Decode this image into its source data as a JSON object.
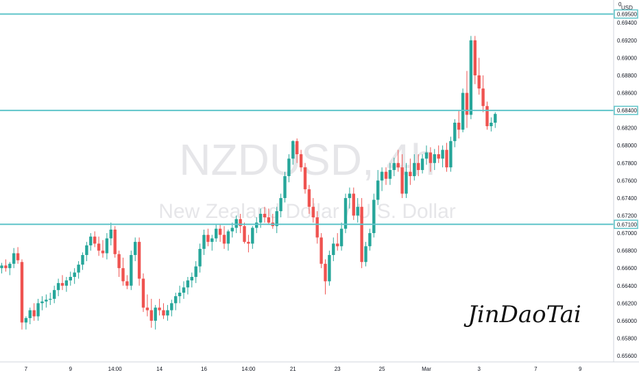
{
  "watermark": {
    "symbol": "NZDUSD, 4h",
    "name": "New Zealand Dollar / U.S. Dollar"
  },
  "axis": {
    "currency": "USD",
    "top_tick": "0"
  },
  "signature": "JinDaoTai",
  "colors": {
    "up": "#26a69a",
    "down": "#ef5350",
    "level": "#5ec4c9",
    "axis": "#131722"
  },
  "chart_data": {
    "type": "candlestick",
    "title": "",
    "ylim": [
      0.6553,
      0.6966
    ],
    "yticks": [
      "0.69500",
      "0.69400",
      "0.69200",
      "0.69000",
      "0.68800",
      "0.68600",
      "0.68400",
      "0.68200",
      "0.68000",
      "0.67800",
      "0.67600",
      "0.67400",
      "0.67200",
      "0.67100",
      "0.67000",
      "0.66800",
      "0.66600",
      "0.66400",
      "0.66200",
      "0.66000",
      "0.65800",
      "0.65600"
    ],
    "xticks": [
      {
        "label": "7",
        "index": 6
      },
      {
        "label": "9",
        "index": 17
      },
      {
        "label": "14:00",
        "index": 28
      },
      {
        "label": "14",
        "index": 39
      },
      {
        "label": "16",
        "index": 50
      },
      {
        "label": "14:00",
        "index": 61
      },
      {
        "label": "21",
        "index": 72
      },
      {
        "label": "23",
        "index": 83
      },
      {
        "label": "25",
        "index": 94
      },
      {
        "label": "Mar",
        "index": 105
      },
      {
        "label": "3",
        "index": 118
      },
      {
        "label": "7",
        "index": 132
      },
      {
        "label": "9",
        "index": 143
      }
    ],
    "levels": [
      {
        "value": 0.695,
        "label": "0.69500"
      },
      {
        "value": 0.684,
        "label": "0.68400"
      },
      {
        "value": 0.671,
        "label": "0.67100"
      }
    ],
    "candles": [
      [
        0.666,
        0.6666,
        0.6654,
        0.6663
      ],
      [
        0.6663,
        0.667,
        0.6656,
        0.666
      ],
      [
        0.666,
        0.6667,
        0.6652,
        0.6665
      ],
      [
        0.6665,
        0.6683,
        0.666,
        0.6677
      ],
      [
        0.6677,
        0.6684,
        0.6665,
        0.6669
      ],
      [
        0.6667,
        0.667,
        0.659,
        0.6598
      ],
      [
        0.6598,
        0.6605,
        0.659,
        0.6603
      ],
      [
        0.6603,
        0.6615,
        0.6596,
        0.6612
      ],
      [
        0.6612,
        0.662,
        0.66,
        0.6605
      ],
      [
        0.6605,
        0.6625,
        0.66,
        0.662
      ],
      [
        0.662,
        0.6628,
        0.6612,
        0.6622
      ],
      [
        0.6622,
        0.663,
        0.6615,
        0.6624
      ],
      [
        0.6624,
        0.6632,
        0.6618,
        0.6625
      ],
      [
        0.6625,
        0.664,
        0.662,
        0.6635
      ],
      [
        0.6635,
        0.6648,
        0.6628,
        0.6643
      ],
      [
        0.6643,
        0.6652,
        0.6635,
        0.664
      ],
      [
        0.664,
        0.665,
        0.6633,
        0.6646
      ],
      [
        0.6646,
        0.6656,
        0.664,
        0.665
      ],
      [
        0.665,
        0.666,
        0.6642,
        0.6655
      ],
      [
        0.6655,
        0.6668,
        0.6648,
        0.6664
      ],
      [
        0.6664,
        0.6678,
        0.6658,
        0.6675
      ],
      [
        0.6675,
        0.669,
        0.6668,
        0.6686
      ],
      [
        0.6686,
        0.67,
        0.668,
        0.6696
      ],
      [
        0.6696,
        0.6702,
        0.6684,
        0.6688
      ],
      [
        0.6688,
        0.6696,
        0.6674,
        0.668
      ],
      [
        0.668,
        0.6692,
        0.6672,
        0.6677
      ],
      [
        0.6677,
        0.67,
        0.667,
        0.6694
      ],
      [
        0.6694,
        0.6712,
        0.6686,
        0.6704
      ],
      [
        0.6704,
        0.6708,
        0.6672,
        0.6676
      ],
      [
        0.6676,
        0.668,
        0.665,
        0.666
      ],
      [
        0.666,
        0.6672,
        0.664,
        0.6645
      ],
      [
        0.6645,
        0.6652,
        0.6636,
        0.664
      ],
      [
        0.664,
        0.668,
        0.6635,
        0.6675
      ],
      [
        0.6675,
        0.6695,
        0.6668,
        0.669
      ],
      [
        0.669,
        0.6695,
        0.664,
        0.6648
      ],
      [
        0.6648,
        0.6654,
        0.661,
        0.6615
      ],
      [
        0.6615,
        0.663,
        0.6605,
        0.6612
      ],
      [
        0.6612,
        0.6625,
        0.6592,
        0.66
      ],
      [
        0.66,
        0.6618,
        0.659,
        0.6615
      ],
      [
        0.6615,
        0.6625,
        0.6606,
        0.6612
      ],
      [
        0.6612,
        0.662,
        0.6602,
        0.6606
      ],
      [
        0.6606,
        0.6618,
        0.66,
        0.6612
      ],
      [
        0.6612,
        0.6624,
        0.6605,
        0.662
      ],
      [
        0.662,
        0.6632,
        0.6612,
        0.6628
      ],
      [
        0.6628,
        0.664,
        0.662,
        0.6632
      ],
      [
        0.6632,
        0.6645,
        0.6625,
        0.6638
      ],
      [
        0.6638,
        0.665,
        0.663,
        0.6646
      ],
      [
        0.6646,
        0.6655,
        0.6638,
        0.665
      ],
      [
        0.665,
        0.6668,
        0.6643,
        0.6662
      ],
      [
        0.6662,
        0.6688,
        0.6655,
        0.6682
      ],
      [
        0.6682,
        0.6704,
        0.6675,
        0.6698
      ],
      [
        0.6698,
        0.6705,
        0.6685,
        0.669
      ],
      [
        0.669,
        0.6698,
        0.668,
        0.6694
      ],
      [
        0.6694,
        0.671,
        0.669,
        0.6705
      ],
      [
        0.6705,
        0.671,
        0.669,
        0.6698
      ],
      [
        0.6698,
        0.6708,
        0.6682,
        0.6688
      ],
      [
        0.6688,
        0.6704,
        0.668,
        0.6702
      ],
      [
        0.6702,
        0.6712,
        0.6695,
        0.6706
      ],
      [
        0.6706,
        0.672,
        0.67,
        0.6716
      ],
      [
        0.6716,
        0.6722,
        0.67,
        0.6708
      ],
      [
        0.6708,
        0.6712,
        0.6688,
        0.669
      ],
      [
        0.669,
        0.6698,
        0.6678,
        0.6688
      ],
      [
        0.6688,
        0.6708,
        0.6682,
        0.6706
      ],
      [
        0.6706,
        0.6718,
        0.67,
        0.6712
      ],
      [
        0.6712,
        0.6728,
        0.6706,
        0.6722
      ],
      [
        0.6722,
        0.673,
        0.6712,
        0.6718
      ],
      [
        0.6718,
        0.6728,
        0.671,
        0.6712
      ],
      [
        0.6712,
        0.6722,
        0.6705,
        0.6708
      ],
      [
        0.6708,
        0.673,
        0.67,
        0.6725
      ],
      [
        0.6725,
        0.6745,
        0.6718,
        0.674
      ],
      [
        0.674,
        0.677,
        0.6735,
        0.6765
      ],
      [
        0.6765,
        0.679,
        0.6758,
        0.6785
      ],
      [
        0.6785,
        0.6806,
        0.6778,
        0.6805
      ],
      [
        0.6805,
        0.6808,
        0.678,
        0.679
      ],
      [
        0.679,
        0.6795,
        0.677,
        0.6775
      ],
      [
        0.6775,
        0.678,
        0.6745,
        0.675
      ],
      [
        0.675,
        0.6755,
        0.6722,
        0.673
      ],
      [
        0.673,
        0.674,
        0.6712,
        0.6718
      ],
      [
        0.6718,
        0.6725,
        0.6688,
        0.6695
      ],
      [
        0.6695,
        0.67,
        0.666,
        0.6665
      ],
      [
        0.6665,
        0.667,
        0.663,
        0.6645
      ],
      [
        0.6645,
        0.668,
        0.664,
        0.6675
      ],
      [
        0.6675,
        0.6695,
        0.6668,
        0.6688
      ],
      [
        0.6688,
        0.67,
        0.668,
        0.6685
      ],
      [
        0.6685,
        0.6712,
        0.668,
        0.6705
      ],
      [
        0.6705,
        0.6745,
        0.67,
        0.674
      ],
      [
        0.674,
        0.6752,
        0.6728,
        0.6745
      ],
      [
        0.6745,
        0.6752,
        0.6715,
        0.672
      ],
      [
        0.672,
        0.674,
        0.6712,
        0.673
      ],
      [
        0.673,
        0.674,
        0.666,
        0.6667
      ],
      [
        0.6667,
        0.669,
        0.6662,
        0.6685
      ],
      [
        0.6685,
        0.6705,
        0.668,
        0.67
      ],
      [
        0.67,
        0.6745,
        0.6695,
        0.6738
      ],
      [
        0.6738,
        0.6772,
        0.6732,
        0.676
      ],
      [
        0.676,
        0.6775,
        0.6748,
        0.677
      ],
      [
        0.677,
        0.6775,
        0.6755,
        0.6762
      ],
      [
        0.6762,
        0.678,
        0.6755,
        0.6772
      ],
      [
        0.6772,
        0.6786,
        0.6765,
        0.678
      ],
      [
        0.678,
        0.6795,
        0.677,
        0.6775
      ],
      [
        0.6775,
        0.679,
        0.674,
        0.6745
      ],
      [
        0.6745,
        0.678,
        0.674,
        0.677
      ],
      [
        0.677,
        0.6785,
        0.6755,
        0.6765
      ],
      [
        0.6765,
        0.679,
        0.676,
        0.678
      ],
      [
        0.678,
        0.679,
        0.6765,
        0.6772
      ],
      [
        0.6772,
        0.679,
        0.6768,
        0.6785
      ],
      [
        0.6785,
        0.68,
        0.6778,
        0.6792
      ],
      [
        0.6792,
        0.6798,
        0.677,
        0.678
      ],
      [
        0.678,
        0.6796,
        0.6772,
        0.679
      ],
      [
        0.679,
        0.68,
        0.678,
        0.6785
      ],
      [
        0.6785,
        0.68,
        0.6775,
        0.6795
      ],
      [
        0.6795,
        0.6803,
        0.677,
        0.6775
      ],
      [
        0.6775,
        0.681,
        0.677,
        0.6805
      ],
      [
        0.6805,
        0.683,
        0.6798,
        0.6826
      ],
      [
        0.6826,
        0.684,
        0.6808,
        0.6818
      ],
      [
        0.6818,
        0.6865,
        0.6815,
        0.686
      ],
      [
        0.686,
        0.6885,
        0.682,
        0.6835
      ],
      [
        0.6835,
        0.6925,
        0.683,
        0.692
      ],
      [
        0.692,
        0.6925,
        0.687,
        0.688
      ],
      [
        0.688,
        0.69,
        0.6858,
        0.6865
      ],
      [
        0.6865,
        0.688,
        0.6838,
        0.6845
      ],
      [
        0.6845,
        0.685,
        0.6818,
        0.6822
      ],
      [
        0.6822,
        0.6832,
        0.6816,
        0.6826
      ],
      [
        0.6826,
        0.6838,
        0.682,
        0.6836
      ]
    ]
  }
}
